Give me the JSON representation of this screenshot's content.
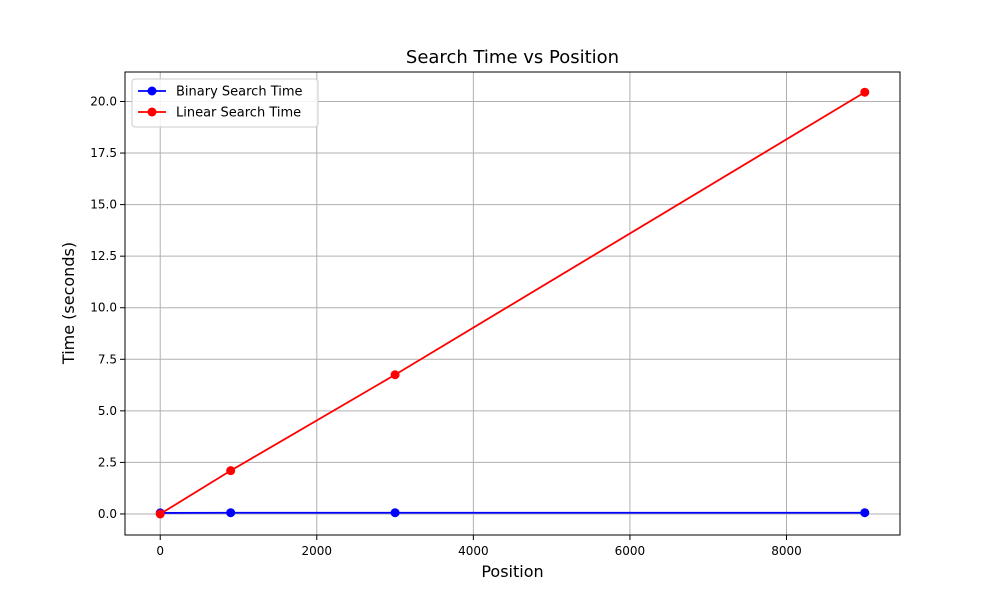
{
  "chart_data": {
    "type": "line",
    "title": "Search Time vs Position",
    "xlabel": "Position",
    "ylabel": "Time (seconds)",
    "xlim": [
      -450,
      9450
    ],
    "ylim": [
      -1.02,
      21.43
    ],
    "xticks": [
      0,
      2000,
      4000,
      6000,
      8000
    ],
    "yticks": [
      0.0,
      2.5,
      5.0,
      7.5,
      10.0,
      12.5,
      15.0,
      17.5,
      20.0
    ],
    "xtick_labels": [
      "0",
      "2000",
      "4000",
      "6000",
      "8000"
    ],
    "ytick_labels": [
      "0.0",
      "2.5",
      "5.0",
      "7.5",
      "10.0",
      "12.5",
      "15.0",
      "17.5",
      "20.0"
    ],
    "grid": true,
    "legend_position": "upper left",
    "series": [
      {
        "name": "Binary Search Time",
        "color": "#0000ff",
        "x": [
          0,
          900,
          3000,
          9000
        ],
        "y": [
          0.05,
          0.06,
          0.06,
          0.06
        ]
      },
      {
        "name": "Linear Search Time",
        "color": "#ff0000",
        "x": [
          0,
          900,
          3000,
          9000
        ],
        "y": [
          0.0,
          2.1,
          6.75,
          20.45
        ]
      }
    ]
  }
}
